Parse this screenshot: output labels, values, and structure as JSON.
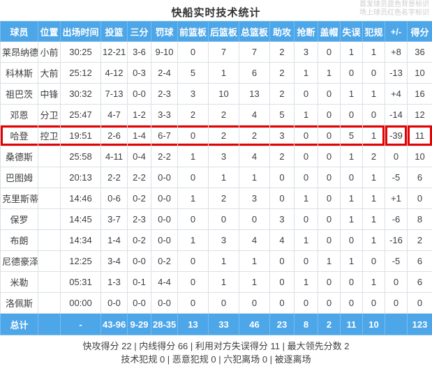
{
  "page": {
    "title": "快船实时技术统计",
    "note_line1": "首发球员蓝色背景标识",
    "note_line2": "场上球员红色名字标识"
  },
  "colors": {
    "header_bg": "#4da6e8",
    "starter_name_bg": "#d7e8f7",
    "oncourt_name_color": "#e62222",
    "highlight_box_red": "#e60000",
    "cell_border": "#d9e0e6",
    "note_text": "#cccccc"
  },
  "table": {
    "columns": [
      "球员",
      "位置",
      "出场时间",
      "投篮",
      "三分",
      "罚球",
      "前篮板",
      "后篮板",
      "总篮板",
      "助攻",
      "抢断",
      "盖帽",
      "失误",
      "犯规",
      "+/-",
      "得分"
    ],
    "rows": [
      {
        "name": "莱昂纳德",
        "starter": true,
        "oncourt": false,
        "highlight": false,
        "stats": [
          "小前",
          "30:25",
          "12-21",
          "3-6",
          "9-10",
          "0",
          "7",
          "7",
          "2",
          "3",
          "0",
          "1",
          "1",
          "+8",
          "36"
        ]
      },
      {
        "name": "科林斯",
        "starter": true,
        "oncourt": false,
        "highlight": false,
        "stats": [
          "大前",
          "25:12",
          "4-12",
          "0-3",
          "2-4",
          "5",
          "1",
          "6",
          "2",
          "1",
          "1",
          "0",
          "0",
          "-13",
          "10"
        ]
      },
      {
        "name": "祖巴茨",
        "starter": true,
        "oncourt": false,
        "highlight": false,
        "stats": [
          "中锋",
          "30:32",
          "7-13",
          "0-0",
          "2-3",
          "3",
          "10",
          "13",
          "2",
          "0",
          "0",
          "1",
          "1",
          "+4",
          "16"
        ]
      },
      {
        "name": "邓恩",
        "starter": true,
        "oncourt": false,
        "highlight": false,
        "stats": [
          "分卫",
          "25:47",
          "4-7",
          "1-2",
          "3-3",
          "2",
          "2",
          "4",
          "5",
          "1",
          "0",
          "0",
          "0",
          "-14",
          "12"
        ]
      },
      {
        "name": "哈登",
        "starter": true,
        "oncourt": false,
        "highlight": true,
        "stats": [
          "控卫",
          "19:51",
          "2-6",
          "1-4",
          "6-7",
          "0",
          "2",
          "2",
          "3",
          "0",
          "0",
          "5",
          "1",
          "-39",
          "11"
        ]
      },
      {
        "name": "桑德斯",
        "starter": false,
        "oncourt": true,
        "highlight": false,
        "stats": [
          "",
          "25:58",
          "4-11",
          "0-4",
          "2-2",
          "1",
          "3",
          "4",
          "2",
          "0",
          "0",
          "1",
          "2",
          "0",
          "10"
        ]
      },
      {
        "name": "巴图姆",
        "starter": false,
        "oncourt": true,
        "highlight": false,
        "stats": [
          "",
          "20:13",
          "2-2",
          "2-2",
          "0-0",
          "0",
          "1",
          "1",
          "0",
          "0",
          "0",
          "0",
          "1",
          "-5",
          "6"
        ]
      },
      {
        "name": "克里斯蒂",
        "starter": false,
        "oncourt": true,
        "highlight": false,
        "stats": [
          "",
          "14:46",
          "0-6",
          "0-2",
          "0-0",
          "1",
          "2",
          "3",
          "0",
          "1",
          "0",
          "1",
          "1",
          "+1",
          "0"
        ]
      },
      {
        "name": "保罗",
        "starter": false,
        "oncourt": false,
        "highlight": false,
        "stats": [
          "",
          "14:45",
          "3-7",
          "2-3",
          "0-0",
          "0",
          "0",
          "0",
          "3",
          "0",
          "0",
          "1",
          "1",
          "-6",
          "8"
        ]
      },
      {
        "name": "布朗",
        "starter": false,
        "oncourt": true,
        "highlight": false,
        "stats": [
          "",
          "14:34",
          "1-4",
          "0-2",
          "0-0",
          "1",
          "3",
          "4",
          "4",
          "1",
          "0",
          "0",
          "1",
          "-16",
          "2"
        ]
      },
      {
        "name": "尼德豪泽",
        "starter": false,
        "oncourt": true,
        "highlight": false,
        "stats": [
          "",
          "12:25",
          "3-4",
          "0-0",
          "0-2",
          "0",
          "1",
          "1",
          "0",
          "0",
          "1",
          "1",
          "0",
          "-5",
          "6"
        ]
      },
      {
        "name": "米勒",
        "starter": false,
        "oncourt": false,
        "highlight": false,
        "stats": [
          "",
          "05:31",
          "1-3",
          "0-1",
          "4-4",
          "0",
          "1",
          "1",
          "0",
          "1",
          "0",
          "0",
          "1",
          "0",
          "6"
        ]
      },
      {
        "name": "洛佩斯",
        "starter": false,
        "oncourt": false,
        "highlight": false,
        "stats": [
          "",
          "00:00",
          "0-0",
          "0-0",
          "0-0",
          "0",
          "0",
          "0",
          "0",
          "0",
          "0",
          "0",
          "0",
          "0",
          "0"
        ]
      }
    ],
    "total": {
      "label": "总计",
      "stats": [
        "",
        "-",
        "43-96",
        "9-29",
        "28-35",
        "13",
        "33",
        "46",
        "23",
        "8",
        "2",
        "11",
        "10",
        "",
        "123"
      ]
    }
  },
  "footer": {
    "line1": "快攻得分 22 | 内线得分 66 | 利用对方失误得分 11 | 最大领先分数 2",
    "line2": "技术犯规 0 | 恶意犯规 0 | 六犯离场 0 | 被逐离场"
  }
}
